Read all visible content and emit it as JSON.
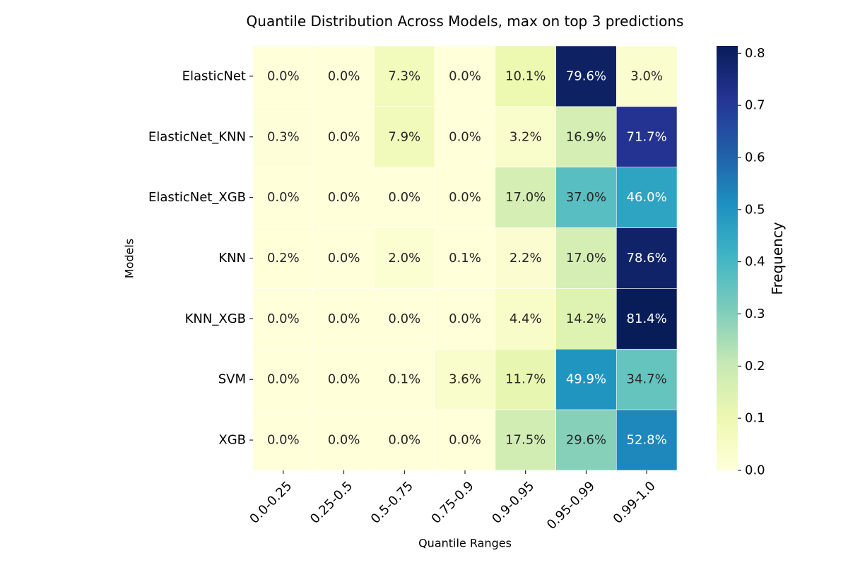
{
  "chart_data": {
    "type": "heatmap",
    "title": "Quantile Distribution Across Models, max on top 3 predictions",
    "xlabel": "Quantile Ranges",
    "ylabel": "Models",
    "x_categories": [
      "0.0-0.25",
      "0.25-0.5",
      "0.5-0.75",
      "0.75-0.9",
      "0.9-0.95",
      "0.95-0.99",
      "0.99-1.0"
    ],
    "y_categories": [
      "ElasticNet",
      "ElasticNet_KNN",
      "ElasticNet_XGB",
      "KNN",
      "KNN_XGB",
      "SVM",
      "XGB"
    ],
    "values": [
      [
        0.0,
        0.0,
        0.073,
        0.0,
        0.101,
        0.796,
        0.03
      ],
      [
        0.003,
        0.0,
        0.079,
        0.0,
        0.032,
        0.169,
        0.717
      ],
      [
        0.0,
        0.0,
        0.0,
        0.0,
        0.17,
        0.37,
        0.46
      ],
      [
        0.002,
        0.0,
        0.02,
        0.001,
        0.022,
        0.17,
        0.786
      ],
      [
        0.0,
        0.0,
        0.0,
        0.0,
        0.044,
        0.142,
        0.814
      ],
      [
        0.0,
        0.0,
        0.001,
        0.036,
        0.117,
        0.499,
        0.347
      ],
      [
        0.0,
        0.0,
        0.0,
        0.0,
        0.175,
        0.296,
        0.528
      ]
    ],
    "cell_labels": [
      [
        "0.0%",
        "0.0%",
        "7.3%",
        "0.0%",
        "10.1%",
        "79.6%",
        "3.0%"
      ],
      [
        "0.3%",
        "0.0%",
        "7.9%",
        "0.0%",
        "3.2%",
        "16.9%",
        "71.7%"
      ],
      [
        "0.0%",
        "0.0%",
        "0.0%",
        "0.0%",
        "17.0%",
        "37.0%",
        "46.0%"
      ],
      [
        "0.2%",
        "0.0%",
        "2.0%",
        "0.1%",
        "2.2%",
        "17.0%",
        "78.6%"
      ],
      [
        "0.0%",
        "0.0%",
        "0.0%",
        "0.0%",
        "4.4%",
        "14.2%",
        "81.4%"
      ],
      [
        "0.0%",
        "0.0%",
        "0.1%",
        "3.6%",
        "11.7%",
        "49.9%",
        "34.7%"
      ],
      [
        "0.0%",
        "0.0%",
        "0.0%",
        "0.0%",
        "17.5%",
        "29.6%",
        "52.8%"
      ]
    ],
    "colormap": "YlGnBu",
    "colorbar": {
      "label": "Frequency",
      "min": 0.0,
      "max": 0.814,
      "ticks": [
        "0.0",
        "0.1",
        "0.2",
        "0.3",
        "0.4",
        "0.5",
        "0.6",
        "0.7",
        "0.8"
      ]
    },
    "grid": false,
    "cell_border_color": "#ffffff"
  }
}
